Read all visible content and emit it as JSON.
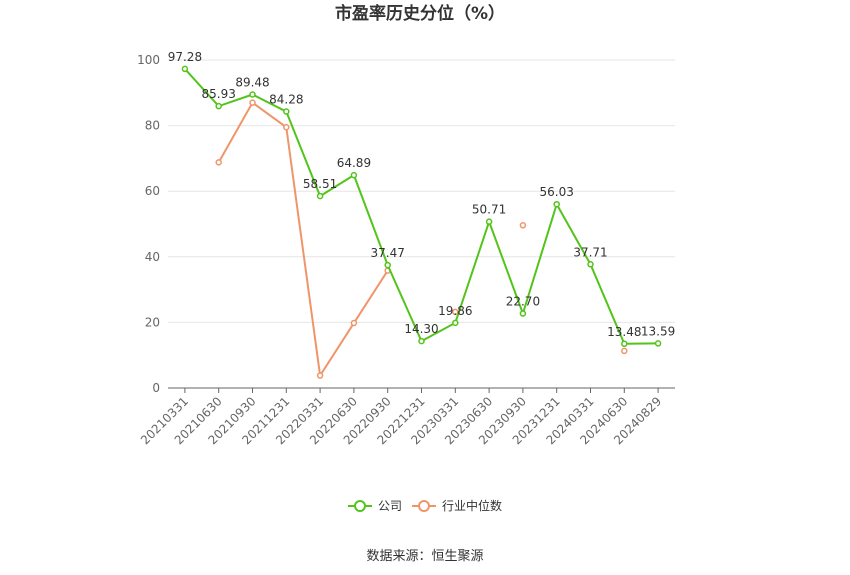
{
  "chart_data": {
    "type": "line",
    "title": "市盈率历史分位（%）",
    "categories": [
      "20210331",
      "20210630",
      "20210930",
      "20211231",
      "20220331",
      "20220630",
      "20220930",
      "20221231",
      "20230331",
      "20230630",
      "20230930",
      "20231231",
      "20240331",
      "20240630",
      "20240829"
    ],
    "series": [
      {
        "name": "公司",
        "color": "#52c41a",
        "values": [
          97.28,
          85.93,
          89.48,
          84.28,
          58.51,
          64.89,
          37.47,
          14.3,
          19.86,
          50.71,
          22.7,
          56.03,
          37.71,
          13.48,
          13.59
        ],
        "labels": [
          "97.28",
          "85.93",
          "89.48",
          "84.28",
          "58.51",
          "64.89",
          "37.47",
          "14.30",
          "19.86",
          "50.71",
          "22.70",
          "56.03",
          "37.71",
          "13.48",
          "13.59"
        ]
      },
      {
        "name": "行业中位数",
        "color": "#f0956a",
        "values": [
          null,
          68.8,
          87.0,
          79.5,
          3.8,
          19.8,
          35.8,
          null,
          23.2,
          null,
          49.6,
          null,
          null,
          11.3,
          null
        ]
      }
    ],
    "yticks": [
      "0",
      "20",
      "40",
      "60",
      "80",
      "100"
    ],
    "ylim": [
      0,
      100
    ],
    "legend_position": "bottom",
    "grid": true
  },
  "source_text": "数据来源：恒生聚源"
}
